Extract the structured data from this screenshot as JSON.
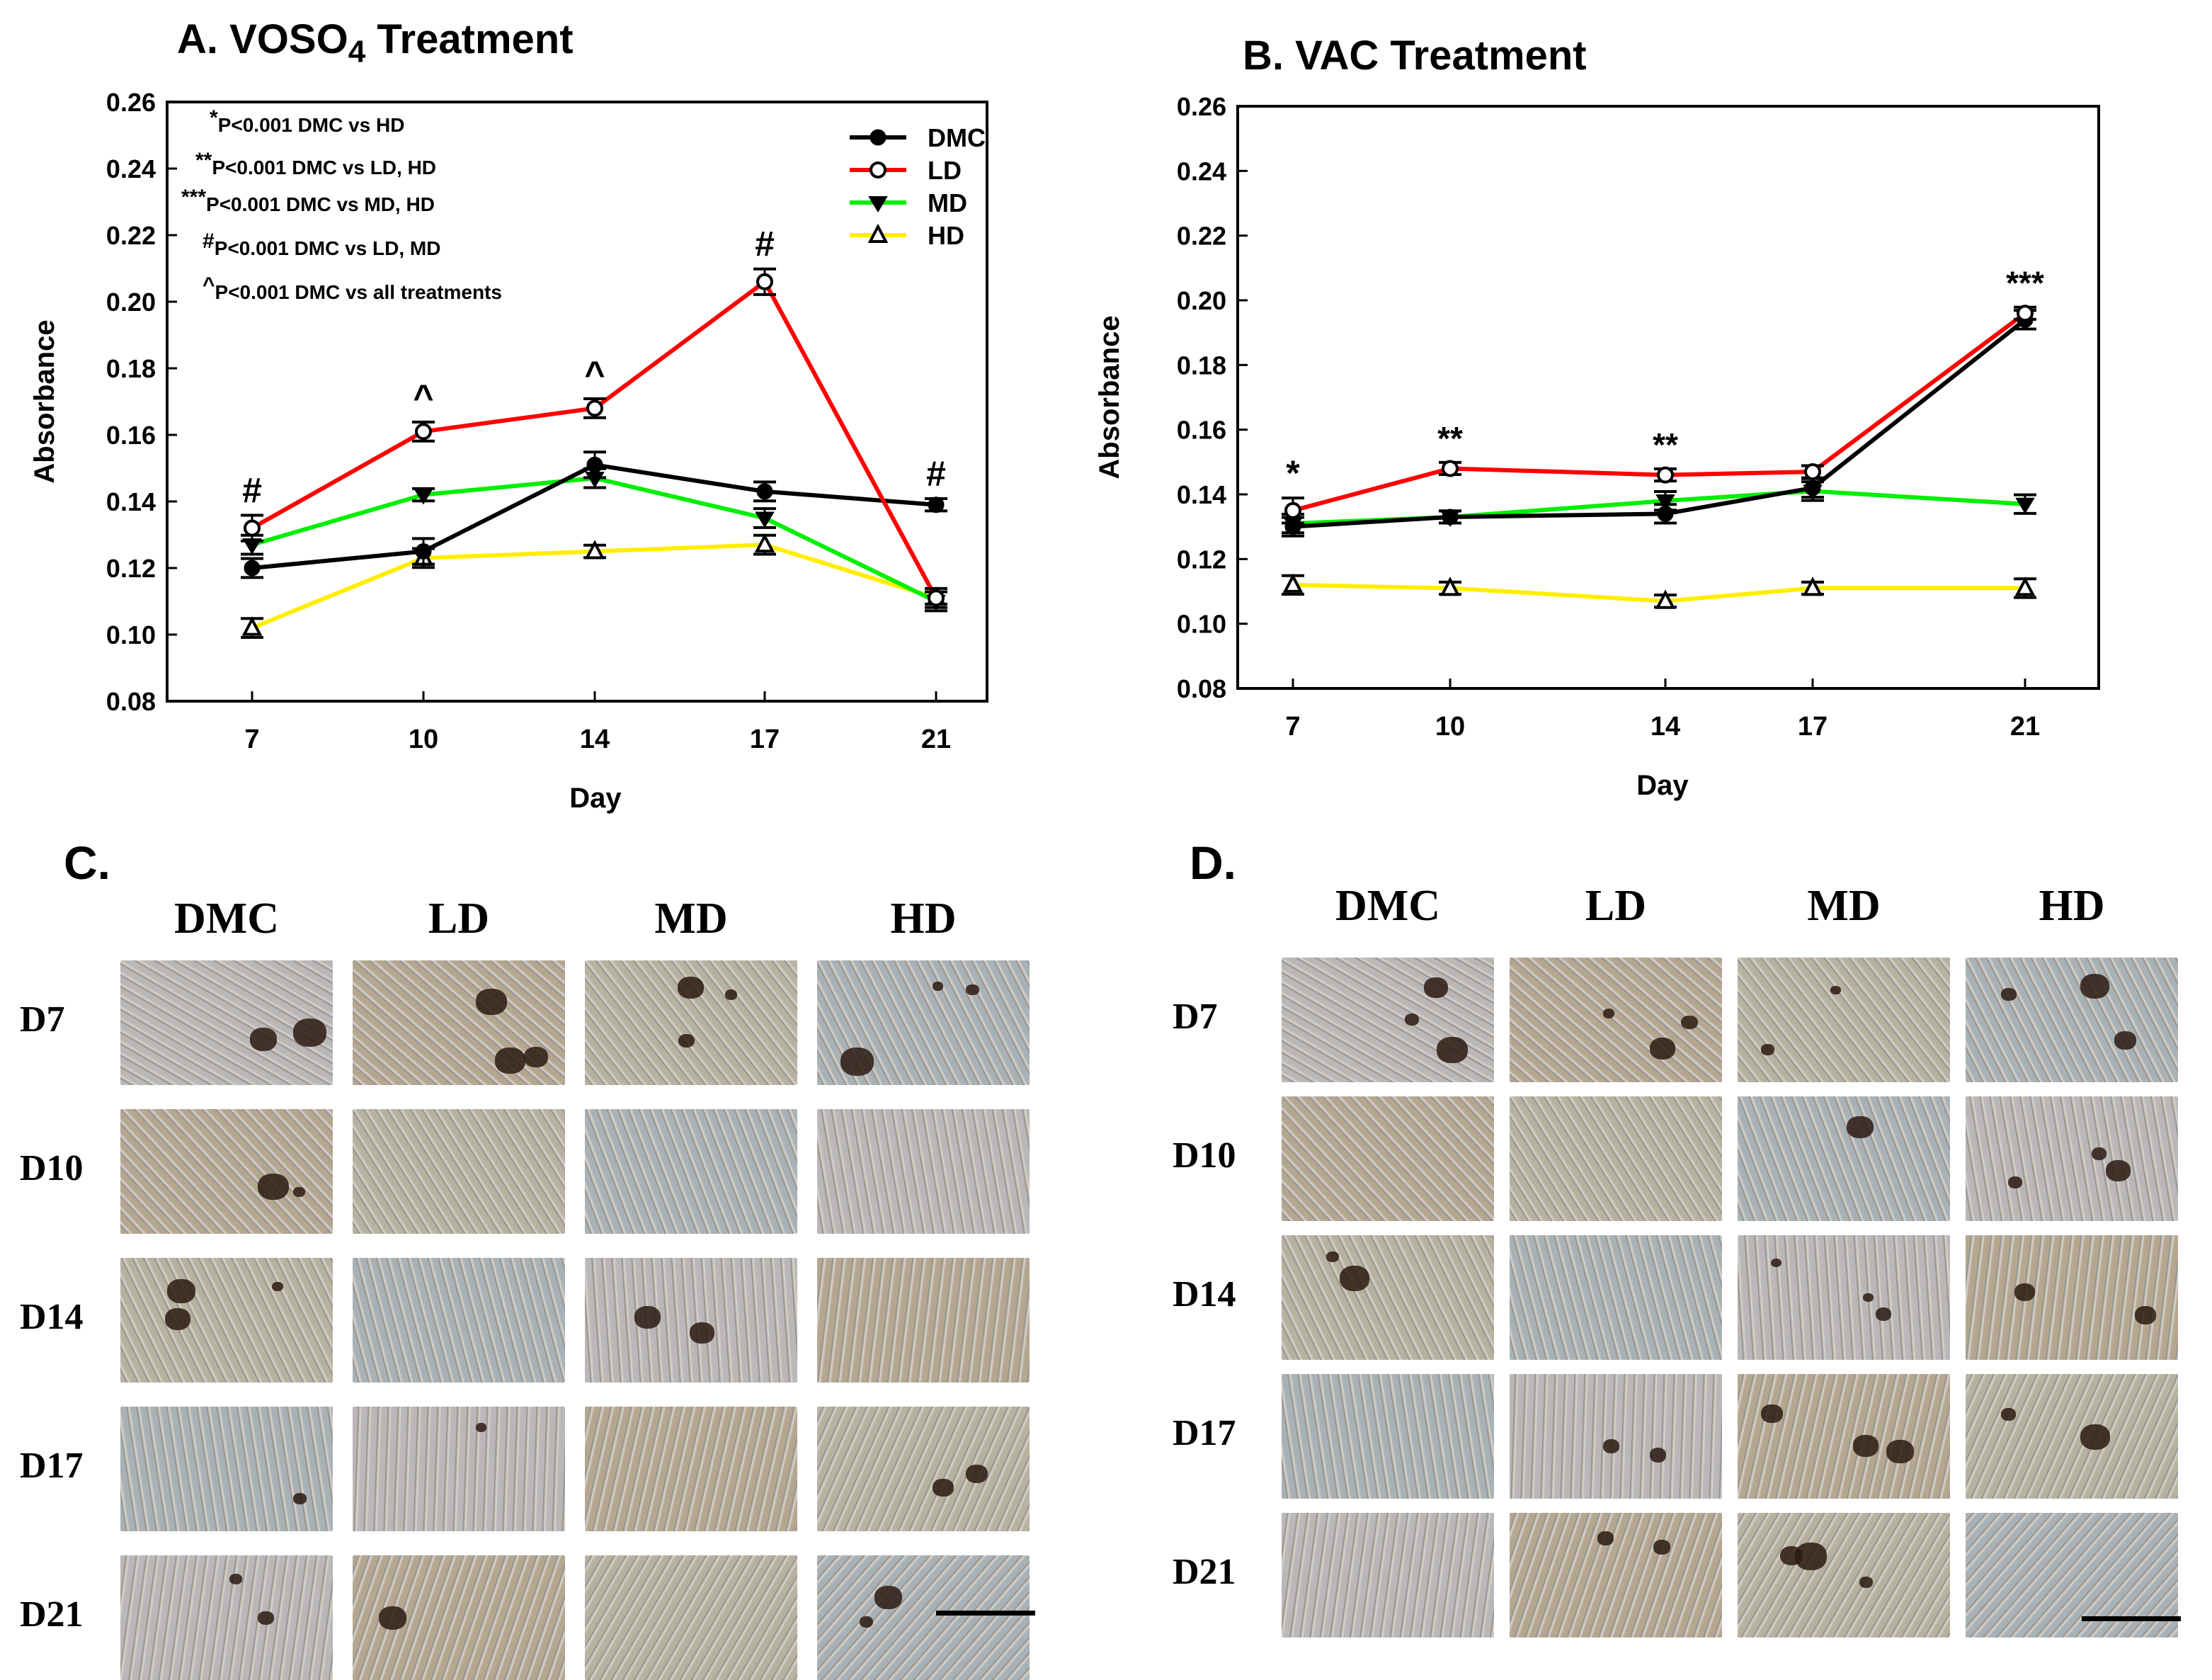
{
  "chart_data": [
    {
      "panel": "A",
      "type": "line",
      "title_main": "A. VOSO",
      "title_sub": "4",
      "title_rest": " Treatment",
      "xlabel": "Day",
      "ylabel": "Absorbance",
      "categories": [
        "7",
        "10",
        "14",
        "17",
        "21"
      ],
      "ylim": [
        0.08,
        0.26
      ],
      "yticks": [
        "0.08",
        "0.10",
        "0.12",
        "0.14",
        "0.16",
        "0.18",
        "0.20",
        "0.22",
        "0.24",
        "0.26"
      ],
      "series": [
        {
          "name": "DMC",
          "color": "#000000",
          "marker": "filled-circle",
          "values": [
            0.12,
            0.125,
            0.151,
            0.143,
            0.139
          ],
          "err": [
            0.002,
            0.003,
            0.003,
            0.002,
            0.001
          ]
        },
        {
          "name": "LD",
          "color": "#ff0000",
          "marker": "open-circle",
          "values": [
            0.132,
            0.161,
            0.168,
            0.206,
            0.111
          ],
          "err": [
            0.003,
            0.002,
            0.002,
            0.003,
            0.002
          ]
        },
        {
          "name": "MD",
          "color": "#00ee00",
          "marker": "filled-triangle-down",
          "values": [
            0.127,
            0.142,
            0.147,
            0.135,
            0.11
          ],
          "err": [
            0.002,
            0.001,
            0.002,
            0.002,
            0.002
          ]
        },
        {
          "name": "HD",
          "color": "#ffee00",
          "marker": "open-triangle-up",
          "values": [
            0.102,
            0.123,
            0.125,
            0.127,
            0.111
          ],
          "err": [
            0.002,
            0.002,
            0.001,
            0.002,
            0.001
          ]
        }
      ],
      "annotations": [
        "#",
        "^",
        "^",
        "#",
        "#"
      ],
      "legend": "top-right",
      "notes": [
        {
          "sym": "*",
          "text": "P<0.001 DMC vs HD"
        },
        {
          "sym": "**",
          "text": "P<0.001 DMC vs LD, HD"
        },
        {
          "sym": "***",
          "text": "P<0.001 DMC vs MD, HD"
        },
        {
          "sym": "#",
          "text": "P<0.001 DMC vs LD, MD"
        },
        {
          "sym": "^",
          "text": "P<0.001 DMC vs all treatments"
        }
      ]
    },
    {
      "panel": "B",
      "type": "line",
      "title": "B. VAC Treatment",
      "xlabel": "Day",
      "ylabel": "Absorbance",
      "categories": [
        "7",
        "10",
        "14",
        "17",
        "21"
      ],
      "ylim": [
        0.08,
        0.26
      ],
      "yticks": [
        "0.08",
        "0.10",
        "0.12",
        "0.14",
        "0.16",
        "0.18",
        "0.20",
        "0.22",
        "0.24",
        "0.26"
      ],
      "series": [
        {
          "name": "DMC",
          "color": "#000000",
          "marker": "filled-circle",
          "values": [
            0.13,
            0.133,
            0.134,
            0.142,
            0.194
          ],
          "err": [
            0.002,
            0.001,
            0.002,
            0.002,
            0.002
          ]
        },
        {
          "name": "LD",
          "color": "#ff0000",
          "marker": "open-circle",
          "values": [
            0.135,
            0.148,
            0.146,
            0.147,
            0.196
          ],
          "err": [
            0.003,
            0.001,
            0.001,
            0.001,
            0.001
          ]
        },
        {
          "name": "MD",
          "color": "#00ee00",
          "marker": "filled-triangle-down",
          "values": [
            0.131,
            0.133,
            0.138,
            0.141,
            0.137
          ],
          "err": [
            0.002,
            0.001,
            0.002,
            0.002,
            0.002
          ]
        },
        {
          "name": "HD",
          "color": "#ffee00",
          "marker": "open-triangle-up",
          "values": [
            0.112,
            0.111,
            0.107,
            0.111,
            0.111
          ],
          "err": [
            0.002,
            0.001,
            0.001,
            0.001,
            0.002
          ]
        }
      ],
      "annotations": [
        "*",
        "**",
        "**",
        "",
        "***"
      ]
    }
  ],
  "panel_c": {
    "letter": "C.",
    "columns": [
      "DMC",
      "LD",
      "MD",
      "HD"
    ],
    "rows": [
      "D7",
      "D10",
      "D14",
      "D17",
      "D21"
    ]
  },
  "panel_d": {
    "letter": "D.",
    "columns": [
      "DMC",
      "LD",
      "MD",
      "HD"
    ],
    "rows": [
      "D7",
      "D10",
      "D14",
      "D17",
      "D21"
    ]
  }
}
